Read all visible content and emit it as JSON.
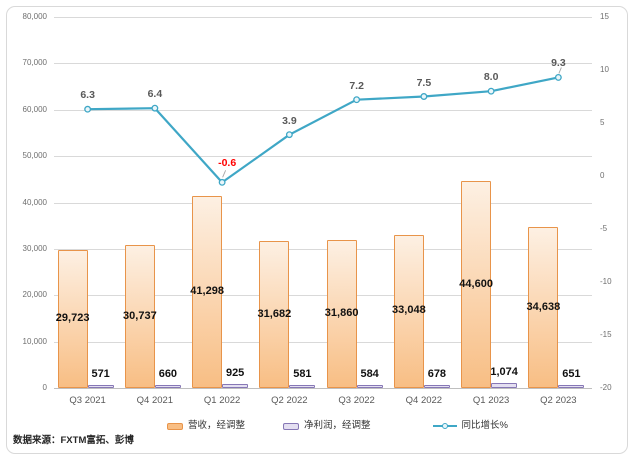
{
  "chart_data": {
    "type": "combo-bar-line",
    "categories": [
      "Q3 2021",
      "Q4 2021",
      "Q1 2022",
      "Q2 2022",
      "Q3 2022",
      "Q4 2022",
      "Q1 2023",
      "Q2 2023"
    ],
    "series": [
      {
        "name": "营收，经调整",
        "type": "bar",
        "axis": "left",
        "values": [
          29723,
          30737,
          41298,
          31682,
          31860,
          33048,
          44600,
          34638
        ],
        "labels": [
          "29,723",
          "30,737",
          "41,298",
          "31,682",
          "31,860",
          "33,048",
          "44,600",
          "34,638"
        ]
      },
      {
        "name": "净利润，经调整",
        "type": "bar",
        "axis": "left",
        "values": [
          571,
          660,
          925,
          581,
          584,
          678,
          1074,
          651
        ],
        "labels": [
          "571",
          "660",
          "925",
          "581",
          "584",
          "678",
          "1,074",
          "651"
        ]
      },
      {
        "name": "同比增长%",
        "type": "line",
        "axis": "right",
        "values": [
          6.3,
          6.4,
          -0.6,
          3.9,
          7.2,
          7.5,
          8.0,
          9.3
        ],
        "labels": [
          "6.3",
          "6.4",
          "-0.6",
          "3.9",
          "7.2",
          "7.5",
          "8.0",
          "9.3"
        ]
      }
    ],
    "left_axis": {
      "min": 0,
      "max": 80000,
      "step": 10000,
      "tick_labels": [
        "0",
        "10,000",
        "20,000",
        "30,000",
        "40,000",
        "50,000",
        "60,000",
        "70,000",
        "80,000"
      ]
    },
    "right_axis": {
      "min": -20,
      "max": 15,
      "step": 5,
      "tick_labels": [
        "-20",
        "-15",
        "-10",
        "-5",
        "0",
        "5",
        "10",
        "15"
      ]
    },
    "grid": true,
    "legend_position": "bottom",
    "colors": {
      "revenue_fill_top": "#FDF0E3",
      "revenue_fill_bottom": "#F8BE84",
      "revenue_border": "#E8944A",
      "net_fill": "#E4DFF1",
      "net_border": "#8677B5",
      "line": "#3FA7C6",
      "marker_fill": "#EAF6FA",
      "gridline": "#D9D9D9",
      "axis_line": "#BFBFBF",
      "leader": "#A6A6A6",
      "negative_label": "#FF0000",
      "line_label": "#595959"
    }
  },
  "source_note": "数据来源：FXTM富拓、彭博"
}
